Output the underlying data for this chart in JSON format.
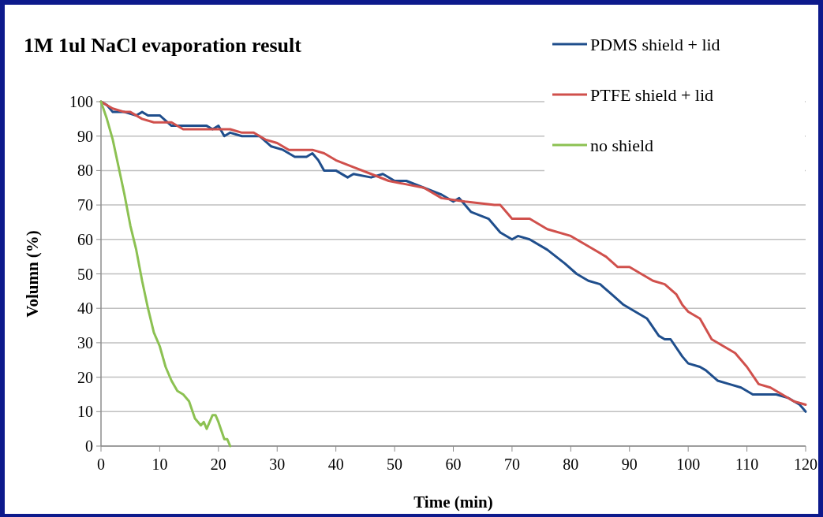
{
  "chart_data": {
    "type": "line",
    "title": "1M 1ul NaCl evaporation result",
    "xlabel": "Time (min)",
    "ylabel": "Volumn (%)",
    "xlim": [
      0,
      120
    ],
    "xticks": [
      0,
      10,
      20,
      30,
      40,
      50,
      60,
      70,
      80,
      90,
      100,
      110,
      120
    ],
    "ylim": [
      0,
      100
    ],
    "yticks": [
      0,
      10,
      20,
      30,
      40,
      50,
      60,
      70,
      80,
      90,
      100
    ],
    "grid": "y",
    "legend": "top right",
    "marker": "none",
    "line_style": "solid",
    "series": [
      {
        "name": "PDMS shield + lid",
        "color": "#1f4e8c",
        "x": [
          0,
          1,
          2,
          4,
          6,
          7,
          8,
          10,
          12,
          15,
          18,
          19,
          20,
          21,
          22,
          24,
          27,
          29,
          31,
          33,
          35,
          36,
          37,
          38,
          40,
          42,
          43,
          46,
          48,
          50,
          52,
          55,
          58,
          60,
          61,
          63,
          66,
          68,
          70,
          71,
          73,
          76,
          79,
          81,
          83,
          85,
          87,
          89,
          91,
          93,
          95,
          96,
          97,
          99,
          100,
          102,
          103,
          105,
          107,
          109,
          111,
          115,
          117,
          119,
          120
        ],
        "values": [
          100,
          99,
          97,
          97,
          96,
          97,
          96,
          96,
          93,
          93,
          93,
          92,
          93,
          90,
          91,
          90,
          90,
          87,
          86,
          84,
          84,
          85,
          83,
          80,
          80,
          78,
          79,
          78,
          79,
          77,
          77,
          75,
          73,
          71,
          72,
          68,
          66,
          62,
          60,
          61,
          60,
          57,
          53,
          50,
          48,
          47,
          44,
          41,
          39,
          37,
          32,
          31,
          31,
          26,
          24,
          23,
          22,
          19,
          18,
          17,
          15,
          15,
          14,
          12,
          10
        ]
      },
      {
        "name": "PTFE shield + lid",
        "color": "#d0504c",
        "x": [
          0,
          2,
          4,
          5,
          7,
          9,
          12,
          14,
          18,
          22,
          24,
          26,
          28,
          30,
          32,
          36,
          38,
          40,
          43,
          46,
          49,
          52,
          55,
          58,
          62,
          67,
          68,
          69,
          70,
          73,
          76,
          80,
          83,
          86,
          88,
          90,
          92,
          94,
          96,
          98,
          99,
          100,
          102,
          104,
          106,
          108,
          110,
          112,
          114,
          116,
          118,
          120
        ],
        "values": [
          100,
          98,
          97,
          97,
          95,
          94,
          94,
          92,
          92,
          92,
          91,
          91,
          89,
          88,
          86,
          86,
          85,
          83,
          81,
          79,
          77,
          76,
          75,
          72,
          71,
          70,
          70,
          68,
          66,
          66,
          63,
          61,
          58,
          55,
          52,
          52,
          50,
          48,
          47,
          44,
          41,
          39,
          37,
          31,
          29,
          27,
          23,
          18,
          17,
          15,
          13,
          12
        ]
      },
      {
        "name": "no shield",
        "color": "#8cc152",
        "x": [
          0,
          1,
          2,
          3,
          4,
          5,
          6,
          7,
          8,
          9,
          10,
          11,
          12,
          13,
          14,
          15,
          16,
          17,
          17.5,
          18,
          19,
          19.5,
          20,
          21,
          21.5,
          22
        ],
        "values": [
          100,
          95,
          89,
          81,
          73,
          64,
          57,
          48,
          40,
          33,
          29,
          23,
          19,
          16,
          15,
          13,
          8,
          6,
          7,
          5,
          9,
          9,
          7,
          2,
          2,
          0
        ]
      }
    ]
  }
}
